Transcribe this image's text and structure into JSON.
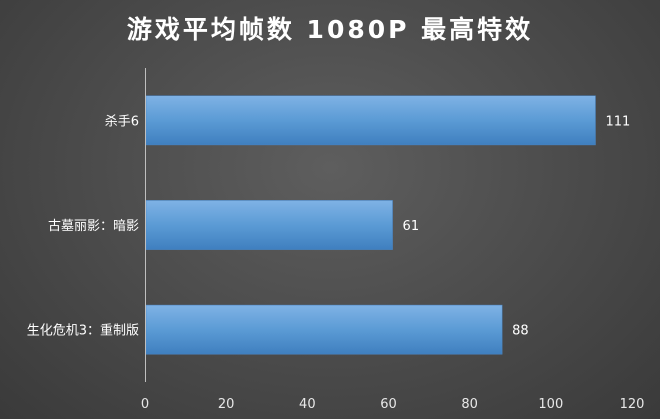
{
  "chart_data": {
    "type": "bar",
    "orientation": "horizontal",
    "title": "游戏平均帧数 1080P 最高特效",
    "categories": [
      "杀手6",
      "古墓丽影：暗影",
      "生化危机3：重制版"
    ],
    "values": [
      111,
      61,
      88
    ],
    "xlim": [
      0,
      120
    ],
    "x_ticks": [
      0,
      20,
      40,
      60,
      80,
      100,
      120
    ],
    "grid": false,
    "legend": "none",
    "bar_color": "#5b9bd5",
    "label_color": "#ffffff"
  }
}
